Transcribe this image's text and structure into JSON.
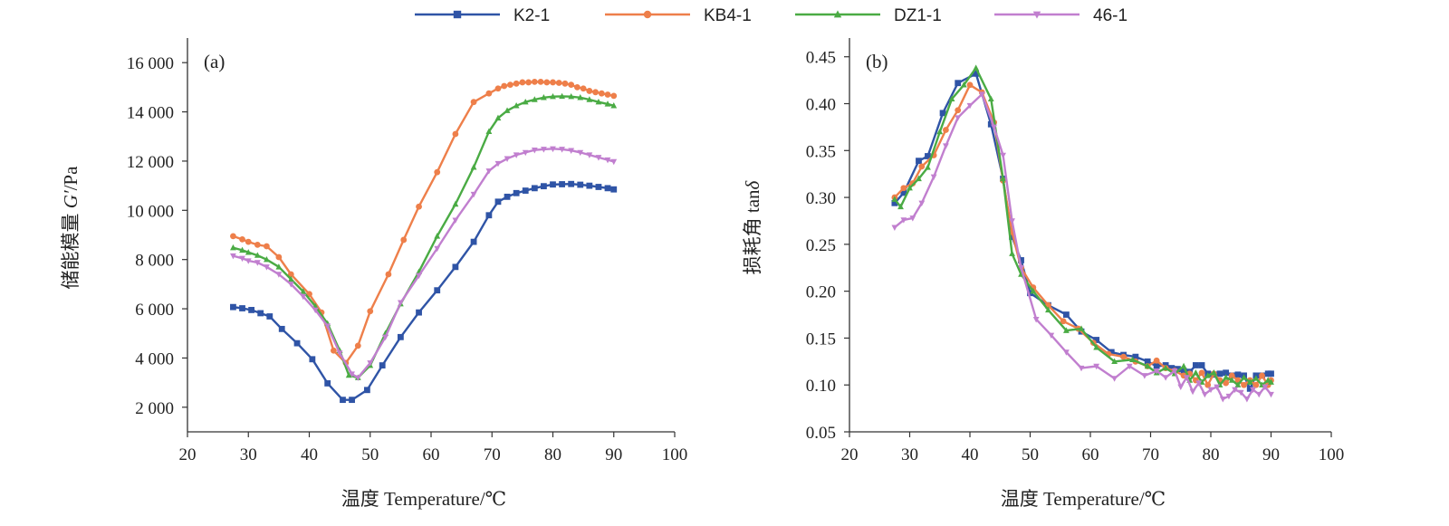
{
  "legend": {
    "items": [
      {
        "name": "K2-1",
        "color": "#2f54a6",
        "marker": "square"
      },
      {
        "name": "KB4-1",
        "color": "#ee7f4a",
        "marker": "circle"
      },
      {
        "name": "DZ1-1",
        "color": "#4aab44",
        "marker": "triangle-up"
      },
      {
        "name": "46-1",
        "color": "#c17fcf",
        "marker": "triangle-down"
      }
    ]
  },
  "chart_data": [
    {
      "type": "line",
      "panel_label": "(a)",
      "xlabel": "温度 Temperature/℃",
      "ylabel_prefix": "储能模量 ",
      "ylabel_symbol": "G′",
      "ylabel_unit": "/Pa",
      "xlim": [
        20,
        100
      ],
      "ylim": [
        1000,
        17000
      ],
      "xticks": [
        20,
        30,
        40,
        50,
        60,
        70,
        80,
        90,
        100
      ],
      "xtick_labels": [
        "20",
        "30",
        "40",
        "50",
        "60",
        "70",
        "80",
        "90",
        "100"
      ],
      "yticks": [
        2000,
        4000,
        6000,
        8000,
        10000,
        12000,
        14000,
        16000
      ],
      "ytick_labels": [
        "2 000",
        "4 000",
        "6 000",
        "8 000",
        "10 000",
        "12 000",
        "14 000",
        "16 000"
      ],
      "series": [
        {
          "name": "K2-1",
          "x": [
            27.5,
            29,
            30.5,
            32,
            33.5,
            35.5,
            38,
            40.5,
            43,
            45.5,
            47,
            49.5,
            52,
            55,
            58,
            61,
            64,
            67,
            69.5,
            71,
            72.5,
            74,
            75.5,
            77,
            78.5,
            80,
            81.5,
            83,
            84.5,
            86,
            87.5,
            89,
            90
          ],
          "y": [
            6070,
            6020,
            5950,
            5820,
            5690,
            5180,
            4600,
            3950,
            2970,
            2300,
            2300,
            2700,
            3700,
            4850,
            5850,
            6750,
            7700,
            8720,
            9800,
            10350,
            10550,
            10700,
            10800,
            10900,
            10980,
            11050,
            11060,
            11070,
            11040,
            11000,
            10950,
            10900,
            10850
          ]
        },
        {
          "name": "KB4-1",
          "x": [
            27.5,
            29,
            30,
            31.5,
            33,
            35,
            37,
            40,
            42,
            44,
            46,
            48,
            50,
            53,
            55.5,
            58,
            61,
            64,
            67,
            69.5,
            71,
            72,
            73,
            74,
            75,
            76,
            77,
            78,
            79,
            80,
            81,
            82,
            83,
            84,
            85,
            86,
            87,
            88,
            89,
            90
          ],
          "y": [
            8950,
            8820,
            8720,
            8600,
            8540,
            8100,
            7400,
            6600,
            5850,
            4300,
            3800,
            4500,
            5900,
            7400,
            8800,
            10150,
            11550,
            13100,
            14400,
            14750,
            14950,
            15050,
            15100,
            15150,
            15200,
            15200,
            15220,
            15220,
            15200,
            15200,
            15180,
            15150,
            15100,
            15000,
            14950,
            14850,
            14800,
            14750,
            14700,
            14650
          ]
        },
        {
          "name": "DZ1-1",
          "x": [
            27.5,
            29,
            30,
            31.5,
            33,
            35,
            37,
            39,
            41,
            43,
            45,
            46.5,
            48,
            50,
            52.5,
            55,
            58,
            61,
            64,
            67,
            69.5,
            71,
            72.5,
            74,
            75.5,
            77,
            78.5,
            80,
            81.5,
            83,
            84.5,
            86,
            87.5,
            89,
            90
          ],
          "y": [
            8480,
            8380,
            8290,
            8170,
            8000,
            7700,
            7200,
            6700,
            6100,
            5400,
            4300,
            3300,
            3200,
            3700,
            5000,
            6200,
            7500,
            8950,
            10250,
            11750,
            13200,
            13750,
            14050,
            14250,
            14400,
            14500,
            14580,
            14620,
            14630,
            14620,
            14580,
            14500,
            14400,
            14320,
            14250
          ]
        },
        {
          "name": "46-1",
          "x": [
            27.5,
            29,
            30,
            31.5,
            33,
            35,
            37,
            39,
            41,
            43,
            45,
            47,
            48,
            50,
            52.5,
            55,
            58,
            61,
            64,
            67,
            69.5,
            71,
            72.5,
            74,
            75.5,
            77,
            78.5,
            80,
            81.5,
            83,
            84.5,
            86,
            87.5,
            89,
            90
          ],
          "y": [
            8150,
            8050,
            7950,
            7880,
            7700,
            7400,
            7000,
            6500,
            5950,
            5300,
            4200,
            3350,
            3200,
            3800,
            4850,
            6250,
            7350,
            8450,
            9600,
            10650,
            11600,
            11900,
            12100,
            12250,
            12350,
            12450,
            12480,
            12500,
            12480,
            12430,
            12350,
            12250,
            12150,
            12050,
            11980
          ]
        }
      ]
    },
    {
      "type": "line",
      "panel_label": "(b)",
      "xlabel": "温度 Temperature/℃",
      "ylabel_prefix": "损耗角 tan",
      "ylabel_symbol": "δ",
      "ylabel_unit": "",
      "xlim": [
        20,
        100
      ],
      "ylim": [
        0.05,
        0.47
      ],
      "xticks": [
        20,
        30,
        40,
        50,
        60,
        70,
        80,
        90,
        100
      ],
      "xtick_labels": [
        "20",
        "30",
        "40",
        "50",
        "60",
        "70",
        "80",
        "90",
        "100"
      ],
      "yticks": [
        0.05,
        0.1,
        0.15,
        0.2,
        0.25,
        0.3,
        0.35,
        0.4,
        0.45
      ],
      "ytick_labels": [
        "0.05",
        "0.10",
        "0.15",
        "0.20",
        "0.25",
        "0.30",
        "0.35",
        "0.40",
        "0.45"
      ],
      "series": [
        {
          "name": "K2-1",
          "x": [
            27.5,
            29,
            31.5,
            33,
            35.5,
            38,
            41,
            43.5,
            45.5,
            47,
            48.5,
            50,
            53,
            56,
            58.5,
            61,
            63.5,
            65.5,
            67.5,
            69.5,
            71,
            72.5,
            73.5,
            74.5,
            75.5,
            76.5,
            77.5,
            78.5,
            79.5,
            80.5,
            81.5,
            82.5,
            83.5,
            84.5,
            85.5,
            86.5,
            87.5,
            88.5,
            89.5,
            90
          ],
          "y": [
            0.294,
            0.305,
            0.339,
            0.344,
            0.39,
            0.422,
            0.432,
            0.378,
            0.32,
            0.258,
            0.233,
            0.198,
            0.185,
            0.175,
            0.157,
            0.148,
            0.135,
            0.132,
            0.13,
            0.125,
            0.12,
            0.121,
            0.118,
            0.117,
            0.115,
            0.114,
            0.121,
            0.121,
            0.112,
            0.111,
            0.112,
            0.113,
            0.11,
            0.111,
            0.11,
            0.096,
            0.11,
            0.11,
            0.112,
            0.112
          ]
        },
        {
          "name": "KB4-1",
          "x": [
            27.5,
            29,
            30.5,
            32,
            34,
            36,
            38,
            40,
            42,
            44,
            45.5,
            47,
            48.5,
            50.5,
            53,
            55.5,
            58,
            60.5,
            63,
            65.5,
            67.5,
            69.5,
            71,
            72.5,
            74,
            75.5,
            76.5,
            77.5,
            78.5,
            79.5,
            80.5,
            81.5,
            82.5,
            83.5,
            84.5,
            85.5,
            86.5,
            87.5,
            88.5,
            89.5,
            90
          ],
          "y": [
            0.3,
            0.31,
            0.315,
            0.333,
            0.345,
            0.372,
            0.393,
            0.42,
            0.412,
            0.38,
            0.318,
            0.263,
            0.225,
            0.204,
            0.185,
            0.168,
            0.16,
            0.145,
            0.133,
            0.13,
            0.125,
            0.12,
            0.126,
            0.118,
            0.115,
            0.11,
            0.112,
            0.105,
            0.113,
            0.1,
            0.112,
            0.105,
            0.102,
            0.11,
            0.105,
            0.1,
            0.105,
            0.1,
            0.11,
            0.1,
            0.105
          ]
        },
        {
          "name": "DZ1-1",
          "x": [
            27.5,
            28.5,
            30,
            31.5,
            33,
            35,
            37,
            39,
            41,
            43.5,
            45.5,
            47,
            48.5,
            50.5,
            53,
            56,
            58.5,
            61,
            64,
            67,
            69.5,
            71,
            72.5,
            74,
            75.5,
            76.5,
            77.5,
            78.5,
            79.5,
            80.5,
            81.5,
            82.5,
            83.5,
            84.5,
            85.5,
            86.5,
            87.5,
            88.5,
            89.5,
            90
          ],
          "y": [
            0.298,
            0.29,
            0.31,
            0.32,
            0.332,
            0.37,
            0.405,
            0.42,
            0.438,
            0.405,
            0.32,
            0.24,
            0.218,
            0.2,
            0.18,
            0.158,
            0.16,
            0.14,
            0.125,
            0.127,
            0.12,
            0.113,
            0.118,
            0.112,
            0.12,
            0.105,
            0.113,
            0.103,
            0.11,
            0.113,
            0.1,
            0.108,
            0.105,
            0.1,
            0.108,
            0.103,
            0.107,
            0.1,
            0.105,
            0.103
          ]
        },
        {
          "name": "46-1",
          "x": [
            27.5,
            29,
            30.5,
            32,
            34,
            36,
            38,
            40,
            42,
            44,
            45.5,
            47,
            48.5,
            51,
            53.5,
            56,
            58.5,
            61,
            64,
            66.5,
            69,
            71,
            72.5,
            74,
            75,
            76,
            77,
            78,
            79,
            80,
            81,
            82,
            83,
            84,
            85,
            86,
            87,
            88,
            89,
            90
          ],
          "y": [
            0.268,
            0.276,
            0.278,
            0.294,
            0.322,
            0.355,
            0.385,
            0.398,
            0.41,
            0.375,
            0.345,
            0.275,
            0.225,
            0.17,
            0.153,
            0.135,
            0.118,
            0.12,
            0.107,
            0.12,
            0.11,
            0.115,
            0.108,
            0.115,
            0.098,
            0.108,
            0.093,
            0.102,
            0.09,
            0.095,
            0.098,
            0.085,
            0.088,
            0.095,
            0.092,
            0.085,
            0.095,
            0.09,
            0.098,
            0.09
          ]
        }
      ]
    }
  ]
}
